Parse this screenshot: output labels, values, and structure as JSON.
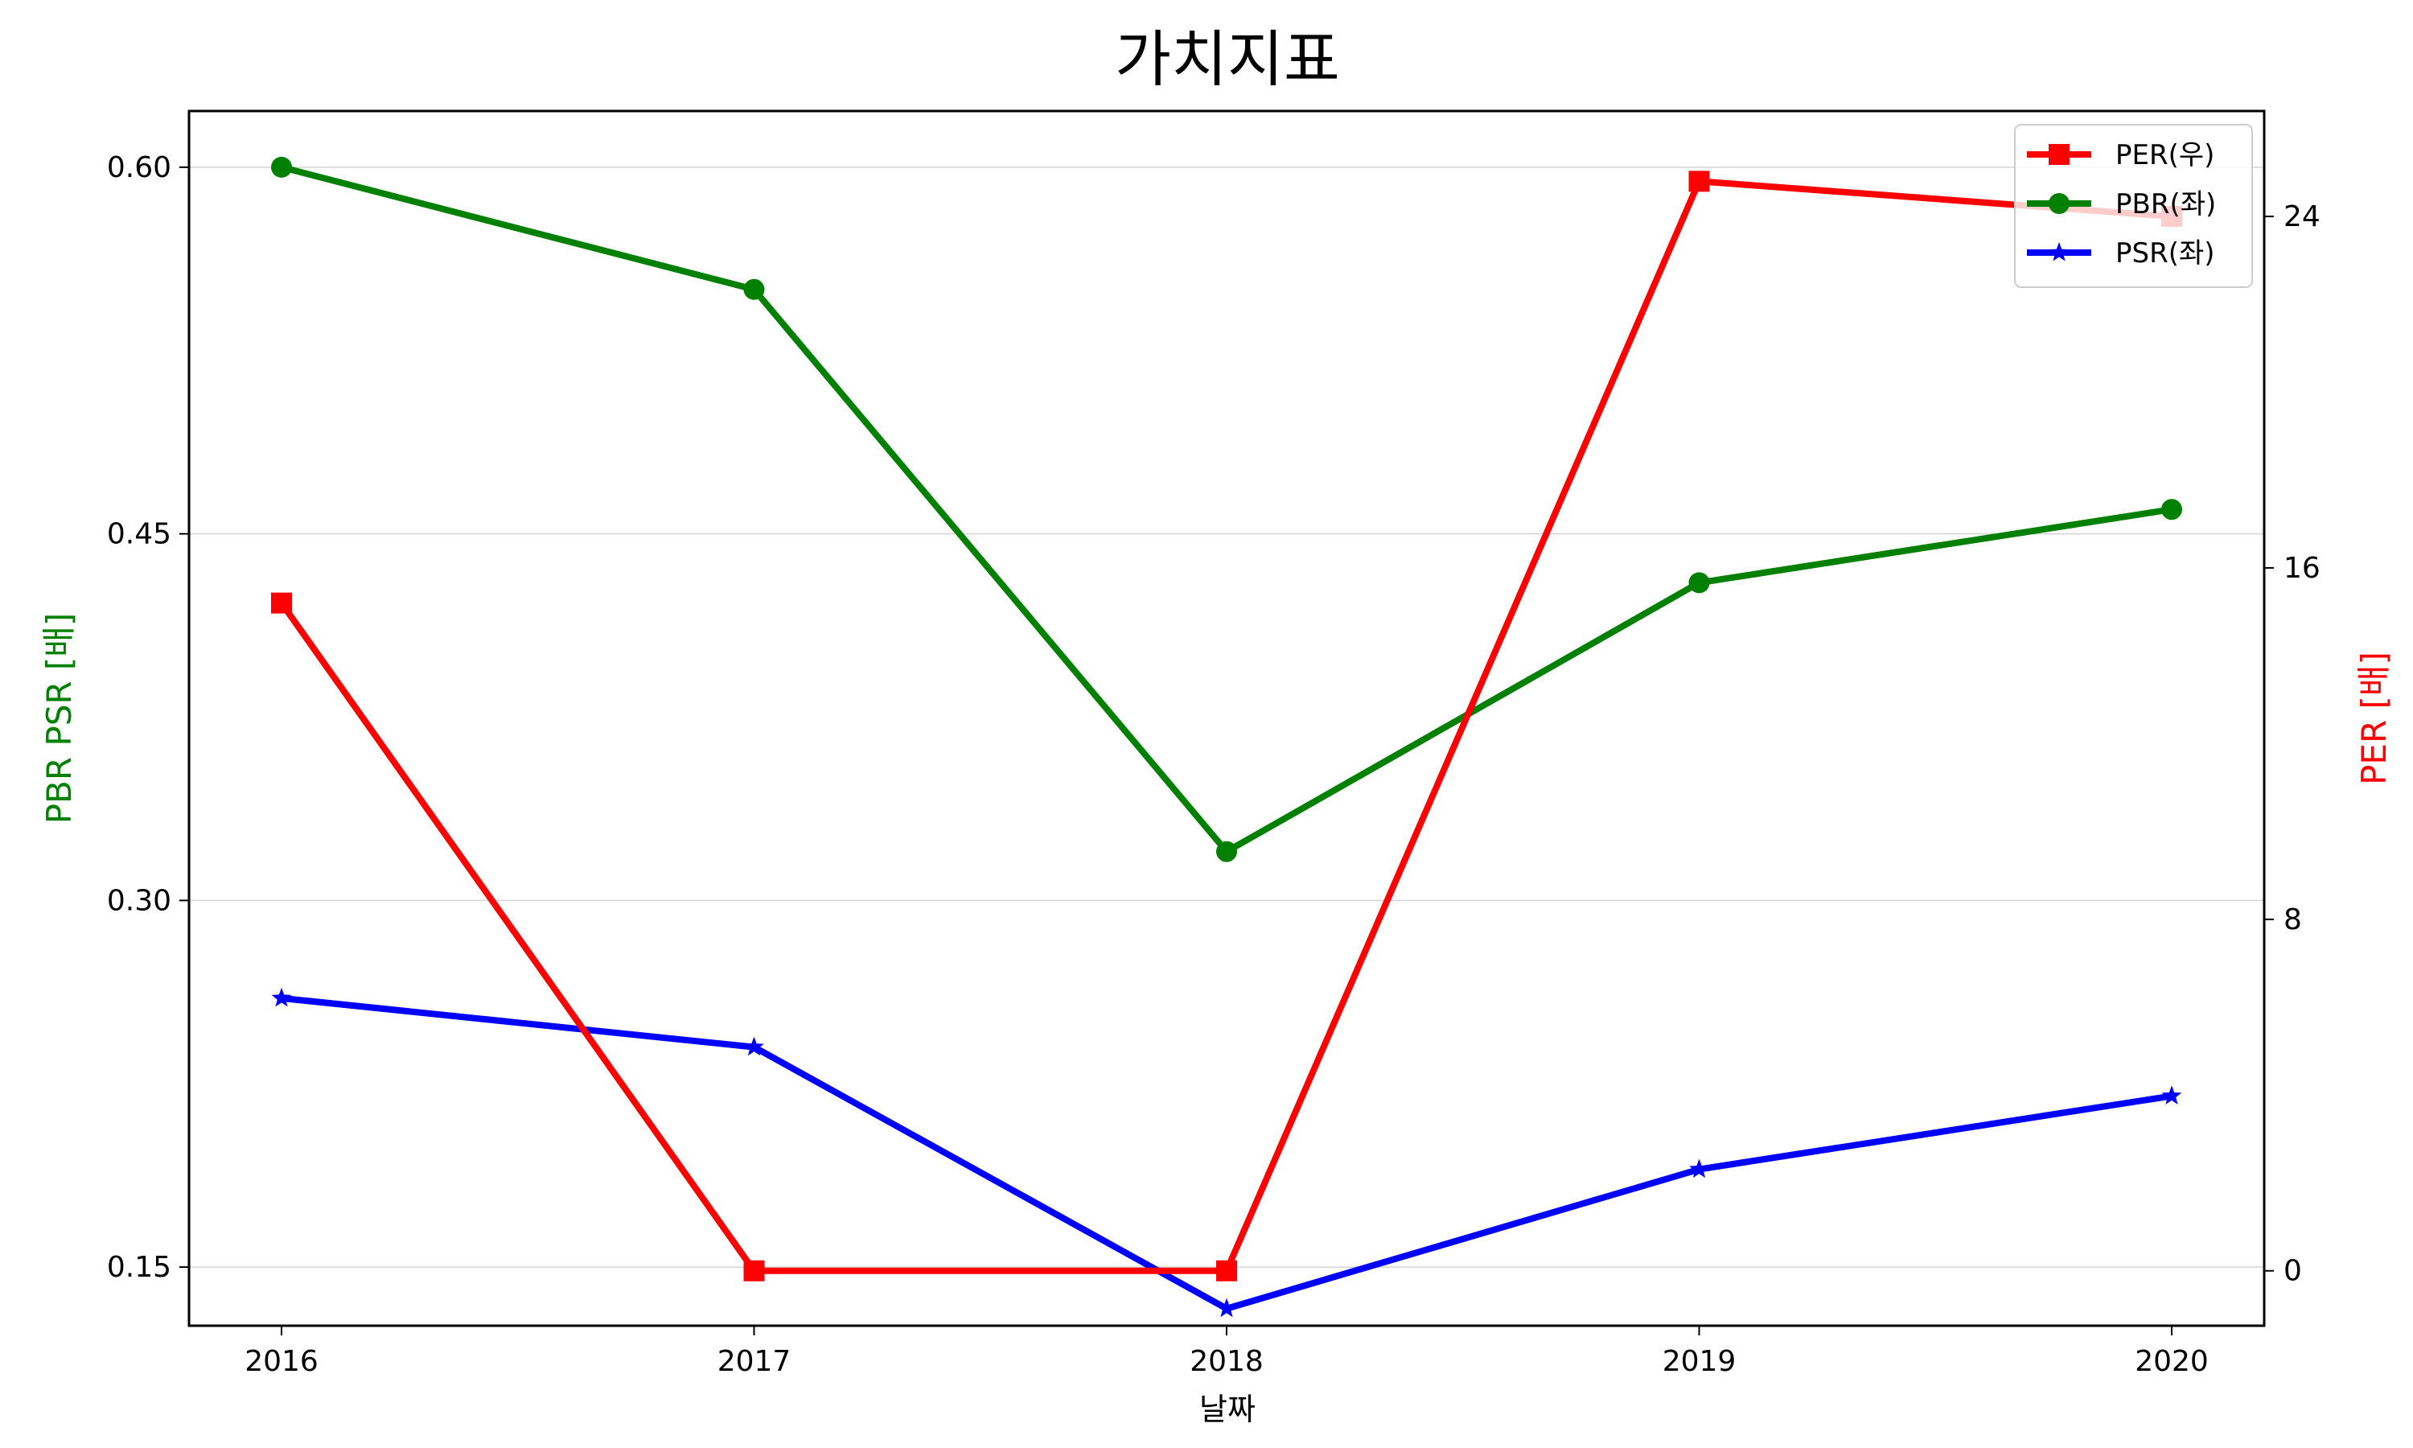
{
  "chart_data": {
    "type": "line",
    "title": "가치지표",
    "xlabel": "날짜",
    "ylabel_left": "PBR PSR [배]",
    "ylabel_right": "PER [배]",
    "categories": [
      "2016",
      "2017",
      "2018",
      "2019",
      "2020"
    ],
    "left_axis": {
      "ticks": [
        "0.15",
        "0.30",
        "0.45",
        "0.60"
      ],
      "tick_values": [
        0.15,
        0.3,
        0.45,
        0.6
      ],
      "ylim": [
        0.126,
        0.623
      ],
      "color": "#008000"
    },
    "right_axis": {
      "ticks": [
        "0",
        "8",
        "16",
        "24"
      ],
      "tick_values": [
        0,
        8,
        16,
        24
      ],
      "ylim": [
        -1.25,
        26.4
      ],
      "color": "#ff0000"
    },
    "series": [
      {
        "name": "PER(우)",
        "axis": "right",
        "color": "#ff0000",
        "marker": "square",
        "values": [
          15.2,
          0,
          0,
          24.8,
          24.0
        ]
      },
      {
        "name": "PBR(좌)",
        "axis": "left",
        "color": "#008000",
        "marker": "circle",
        "values": [
          0.6,
          0.55,
          0.32,
          0.43,
          0.46
        ]
      },
      {
        "name": "PSR(좌)",
        "axis": "left",
        "color": "#0000ff",
        "marker": "star",
        "values": [
          0.26,
          0.24,
          0.133,
          0.19,
          0.22
        ]
      }
    ],
    "grid": "horizontal",
    "legend_position": "top-right"
  }
}
